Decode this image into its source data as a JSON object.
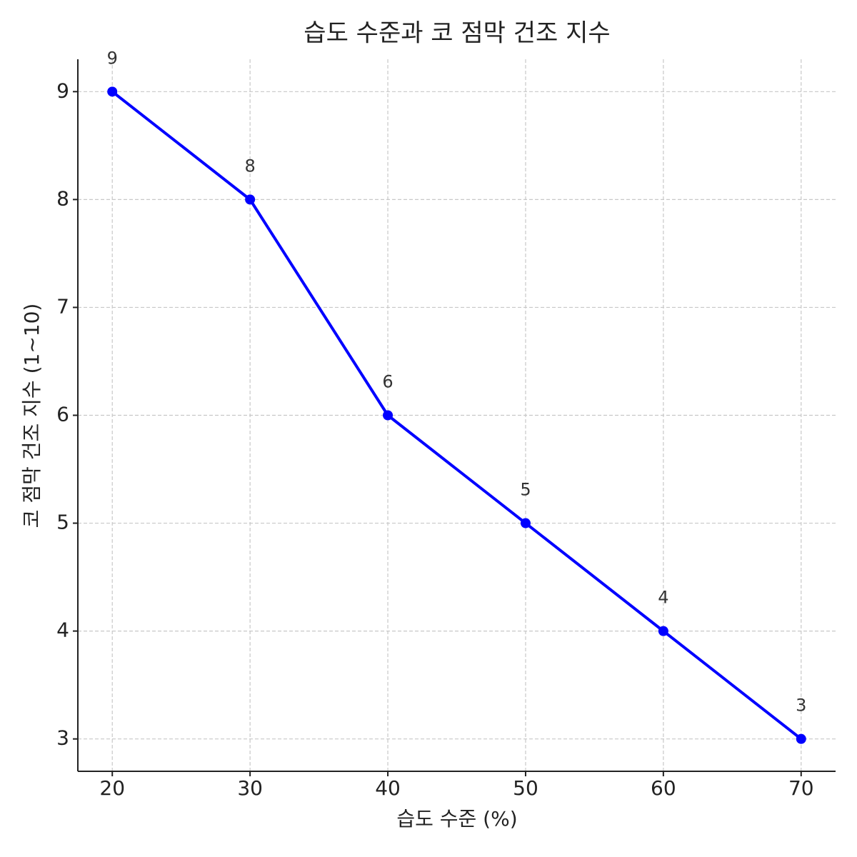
{
  "chart_data": {
    "type": "line",
    "title": "습도 수준과 코 점막 건조 지수",
    "xlabel": "습도 수준 (%)",
    "ylabel": "코 점막 건조 지수 (1~10)",
    "x": [
      20,
      30,
      40,
      50,
      60,
      70
    ],
    "series": [
      {
        "color": "#0000ff",
        "values": [
          9,
          8,
          6,
          5,
          4,
          3
        ]
      }
    ],
    "xlim": [
      17.5,
      72.5
    ],
    "ylim": [
      2.7,
      9.3
    ],
    "xticks": [
      20,
      30,
      40,
      50,
      60,
      70
    ],
    "yticks": [
      3,
      4,
      5,
      6,
      7,
      8,
      9
    ],
    "grid": true
  }
}
